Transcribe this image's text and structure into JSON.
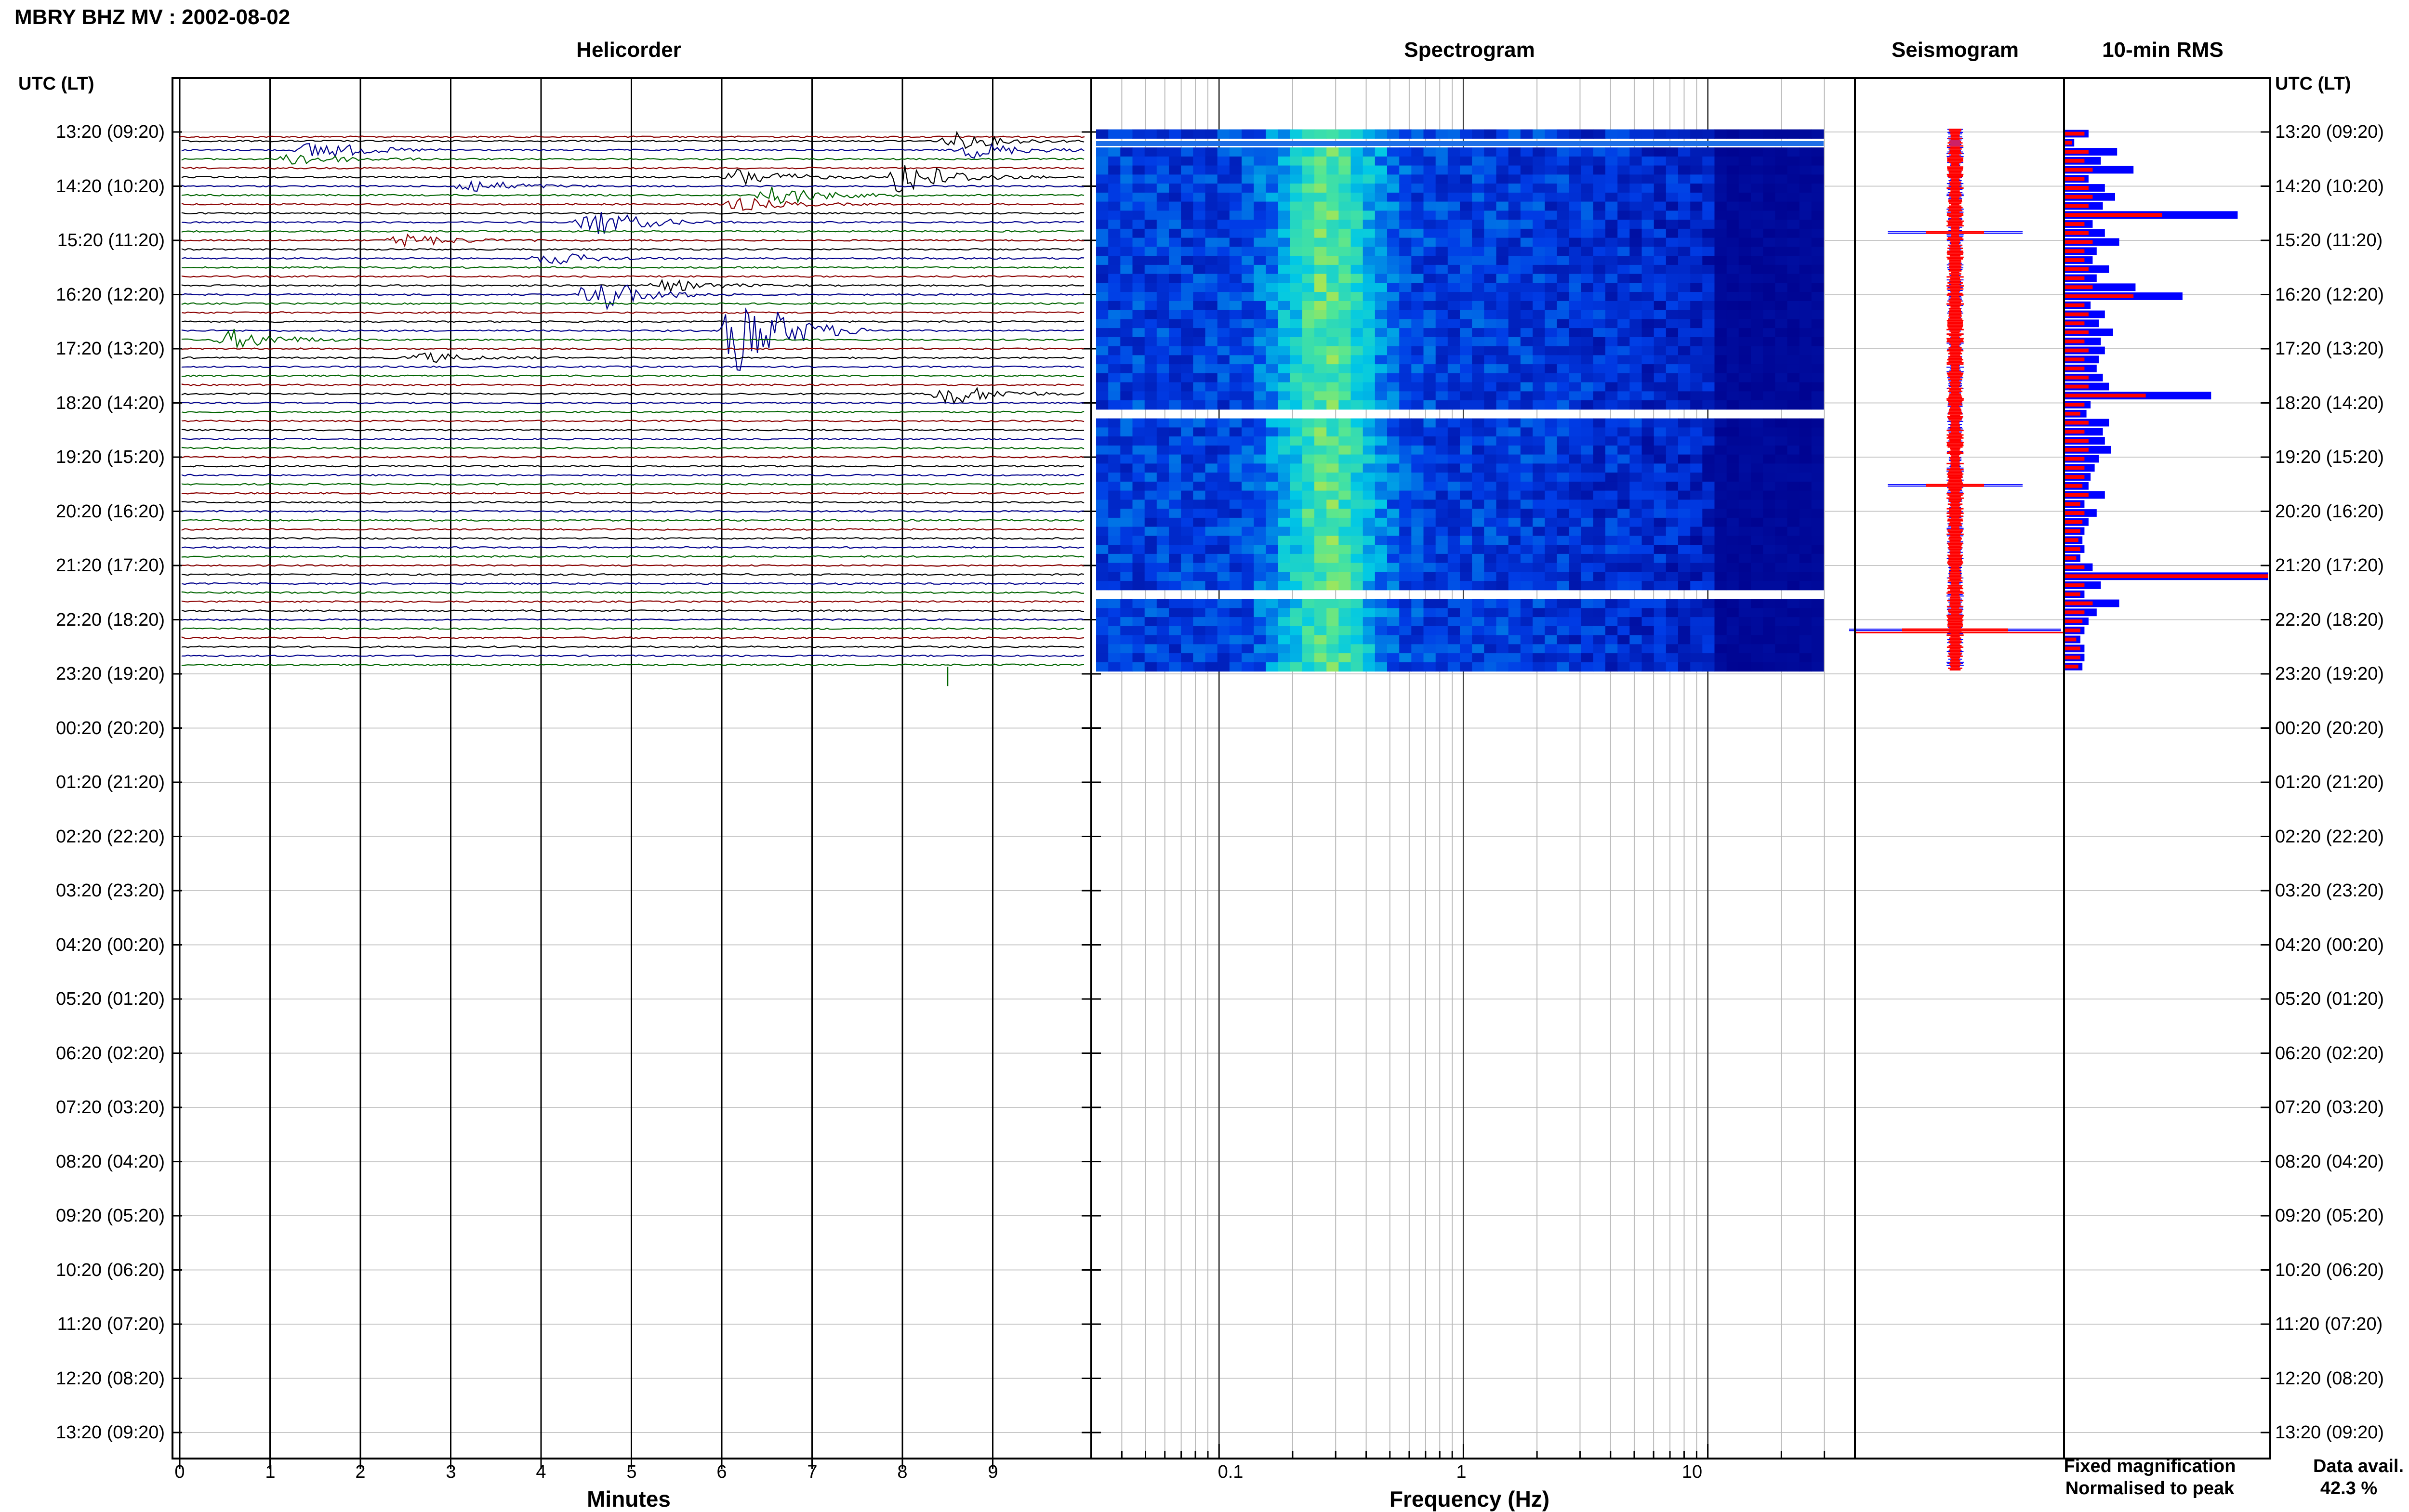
{
  "header": {
    "title": "MBRY BHZ MV : 2002-08-02"
  },
  "panels": {
    "helicorder": "Helicorder",
    "spectrogram": "Spectrogram",
    "seismogram": "Seismogram",
    "rms": "10-min RMS"
  },
  "axes": {
    "time_label_left": "UTC (LT)",
    "time_label_right": "UTC (LT)",
    "minutes_label": "Minutes",
    "frequency_label": "Frequency (Hz)"
  },
  "legend": {
    "fixed": "Fixed magnification",
    "normalised": "Normalised to peak",
    "fixed_color": "#0000ff",
    "normalised_color": "#ff0000"
  },
  "data_availability": {
    "label": "Data avail.",
    "value": "42.3 %"
  },
  "colors": {
    "trace_cycle": [
      "#8b0000",
      "#000000",
      "#00008b",
      "#006400"
    ],
    "rms_fixed": "#0000ff",
    "rms_norm": "#ff0000",
    "spec_low": "#00008b",
    "spec_high": "#9acd32"
  },
  "chart_data": [
    {
      "type": "line",
      "name": "helicorder",
      "x_ticks": [
        "0",
        "1",
        "2",
        "3",
        "4",
        "5",
        "6",
        "7",
        "8",
        "9"
      ],
      "xlim": [
        0,
        10
      ],
      "time_ticks_utc": [
        "13:20 (09:20)",
        "14:20 (10:20)",
        "15:20 (11:20)",
        "16:20 (12:20)",
        "17:20 (13:20)",
        "18:20 (14:20)",
        "19:20 (15:20)",
        "20:20 (16:20)",
        "21:20 (17:20)",
        "22:20 (18:20)",
        "23:20 (19:20)",
        "00:20 (20:20)",
        "01:20 (21:20)",
        "02:20 (22:20)",
        "03:20 (23:20)",
        "04:20 (00:20)",
        "05:20 (01:20)",
        "06:20 (02:20)",
        "07:20 (03:20)",
        "08:20 (04:20)",
        "09:20 (05:20)",
        "10:20 (06:20)",
        "11:20 (07:20)",
        "12:20 (08:20)",
        "13:20 (09:20)"
      ],
      "rows_with_data": 60,
      "rows_per_hour": 6,
      "events": [
        {
          "row": 0.8,
          "minute": 8.6,
          "amplitude": 1.2
        },
        {
          "row": 2.0,
          "minute": 1.5,
          "amplitude": 1.6
        },
        {
          "row": 2.3,
          "minute": 8.8,
          "amplitude": 1.2
        },
        {
          "row": 3.0,
          "minute": 1.3,
          "amplitude": 1.0
        },
        {
          "row": 4.8,
          "minute": 8.0,
          "amplitude": 3.0
        },
        {
          "row": 5.1,
          "minute": 6.2,
          "amplitude": 1.4
        },
        {
          "row": 6.3,
          "minute": 3.2,
          "amplitude": 1.1
        },
        {
          "row": 6.8,
          "minute": 6.6,
          "amplitude": 1.6
        },
        {
          "row": 8.1,
          "minute": 6.2,
          "amplitude": 1.0
        },
        {
          "row": 10.1,
          "minute": 4.6,
          "amplitude": 2.2
        },
        {
          "row": 12.0,
          "minute": 2.5,
          "amplitude": 1.0
        },
        {
          "row": 13.9,
          "minute": 4.1,
          "amplitude": 1.0
        },
        {
          "row": 17.0,
          "minute": 5.4,
          "amplitude": 0.9
        },
        {
          "row": 18.3,
          "minute": 4.6,
          "amplitude": 2.8
        },
        {
          "row": 22.0,
          "minute": 6.2,
          "amplitude": 7.0
        },
        {
          "row": 23.0,
          "minute": 0.6,
          "amplitude": 1.5
        },
        {
          "row": 25.0,
          "minute": 2.7,
          "amplitude": 0.8
        },
        {
          "row": 28.8,
          "minute": 8.5,
          "amplitude": 1.8
        }
      ]
    },
    {
      "type": "heatmap",
      "name": "spectrogram",
      "xscale": "log",
      "xlim": [
        0.03,
        40
      ],
      "x_ticks": [
        "0.1",
        "1",
        "10"
      ],
      "data_rows": 60,
      "gaps_rows": [
        1,
        31,
        51
      ],
      "peak_band_hz": [
        0.15,
        0.45
      ],
      "high_cut_hz": 12
    },
    {
      "type": "line",
      "name": "seismogram",
      "series": [
        {
          "name": "Fixed magnification",
          "color": "#0000ff"
        },
        {
          "name": "Normalised to peak",
          "color": "#ff0000"
        }
      ],
      "peaks_rows": [
        11,
        39,
        55
      ]
    },
    {
      "type": "bar",
      "name": "10-min RMS",
      "orientation": "horizontal",
      "rows_per_bar": 1,
      "fixed": [
        0.12,
        0.05,
        0.26,
        0.18,
        0.34,
        0.12,
        0.2,
        0.25,
        0.19,
        0.85,
        0.14,
        0.2,
        0.27,
        0.16,
        0.14,
        0.22,
        0.16,
        0.35,
        0.58,
        0.13,
        0.2,
        0.17,
        0.24,
        0.18,
        0.2,
        0.17,
        0.16,
        0.19,
        0.22,
        0.72,
        0.13,
        0.11,
        0.22,
        0.19,
        0.2,
        0.23,
        0.17,
        0.15,
        0.13,
        0.12,
        0.2,
        0.1,
        0.16,
        0.12,
        0.1,
        0.09,
        0.1,
        0.08,
        0.14,
        1.0,
        0.18,
        0.1,
        0.27,
        0.16,
        0.12,
        0.1,
        0.08,
        0.1,
        0.1,
        0.09
      ],
      "normalised": [
        0.1,
        0.04,
        0.12,
        0.1,
        0.14,
        0.1,
        0.12,
        0.14,
        0.12,
        0.48,
        0.1,
        0.12,
        0.14,
        0.1,
        0.1,
        0.12,
        0.1,
        0.14,
        0.34,
        0.1,
        0.12,
        0.1,
        0.12,
        0.1,
        0.12,
        0.1,
        0.1,
        0.12,
        0.12,
        0.4,
        0.1,
        0.08,
        0.12,
        0.1,
        0.12,
        0.12,
        0.1,
        0.1,
        0.1,
        0.09,
        0.12,
        0.08,
        0.1,
        0.09,
        0.08,
        0.07,
        0.08,
        0.06,
        0.1,
        1.0,
        0.1,
        0.08,
        0.14,
        0.1,
        0.09,
        0.08,
        0.06,
        0.08,
        0.08,
        0.07
      ]
    }
  ]
}
